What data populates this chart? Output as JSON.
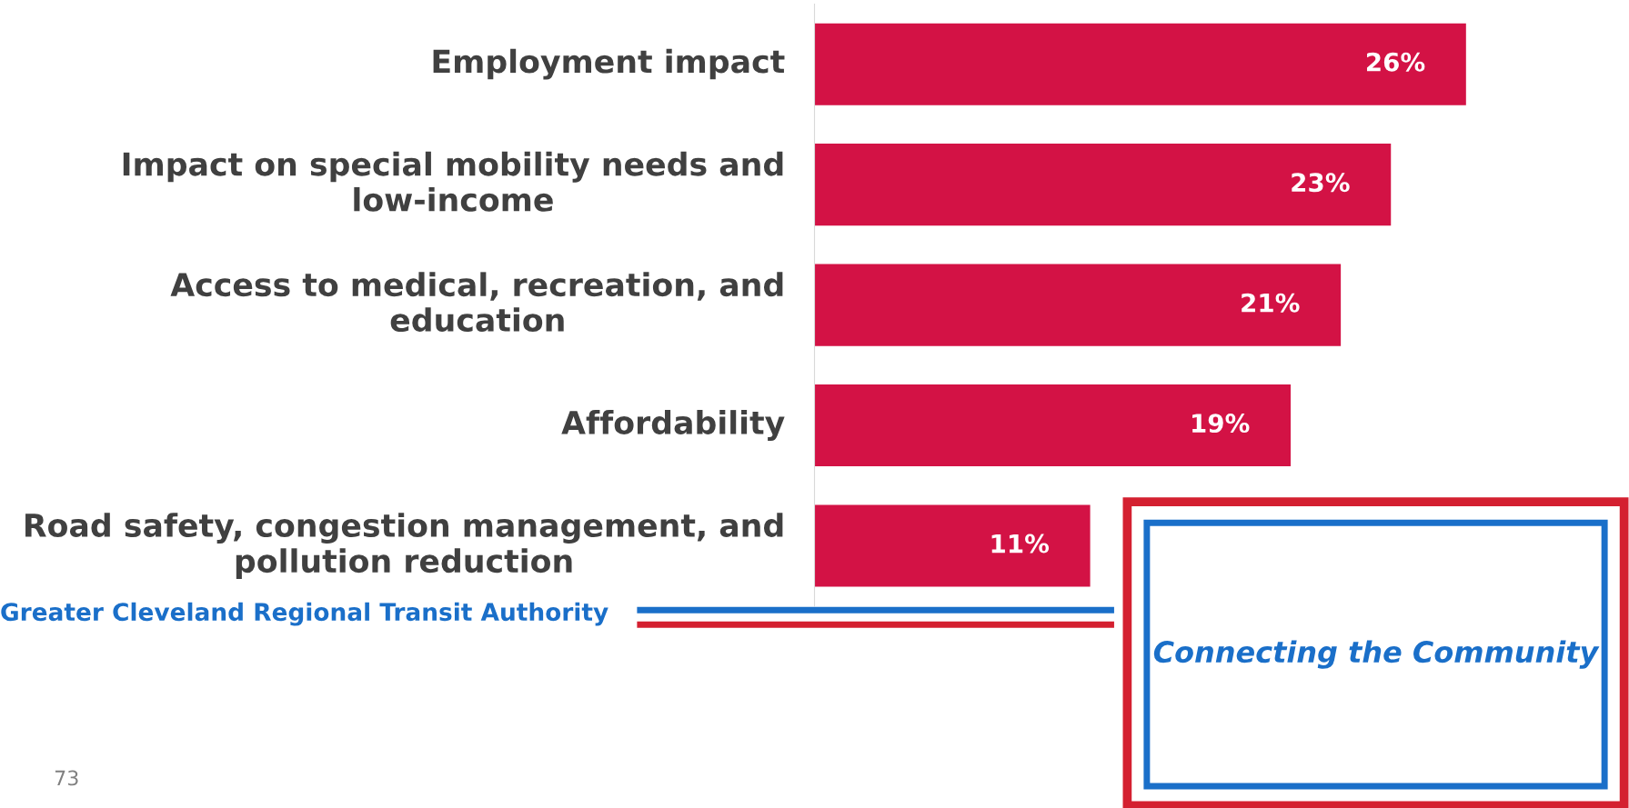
{
  "chart_data": {
    "type": "bar",
    "orientation": "horizontal",
    "categories": [
      "Employment impact",
      "Impact on special mobility needs and low-income",
      "Access to medical, recreation, and education",
      "Affordability",
      "Road safety, congestion management, and pollution reduction"
    ],
    "values": [
      26,
      23,
      21,
      19,
      11
    ],
    "value_labels": [
      "26%",
      "23%",
      "21%",
      "19%",
      "11%"
    ],
    "color": "#d31245",
    "xlim": [
      0,
      26
    ],
    "grid": false,
    "legend": false,
    "annotations": [
      "Greater Cleveland Regional Transit Authority",
      "Connecting the Community",
      "73"
    ]
  }
}
